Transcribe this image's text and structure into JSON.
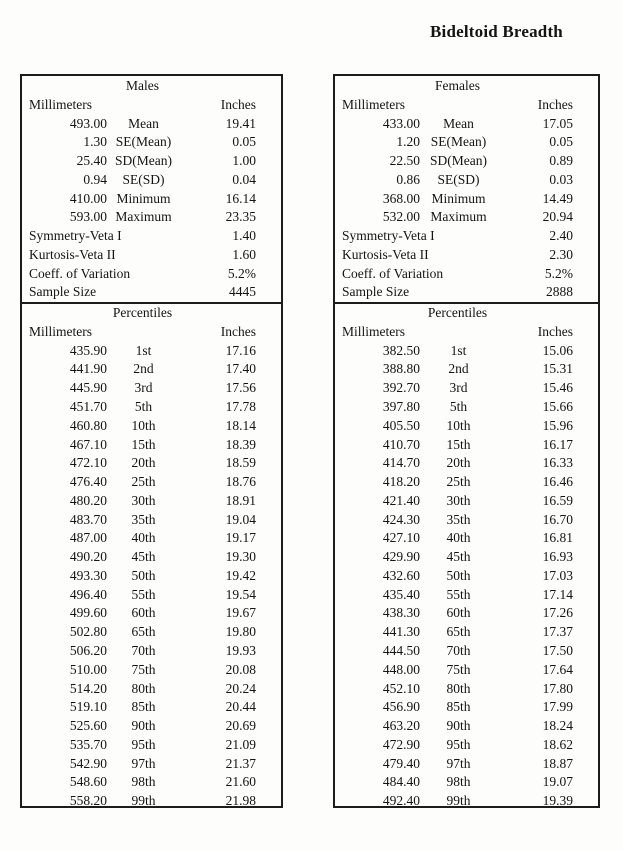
{
  "page_title": "Bideltoid Breadth",
  "tables": [
    {
      "group": "Males",
      "col_mm": "Millimeters",
      "col_in": "Inches",
      "percentiles_header": "Percentiles",
      "stats": [
        {
          "mm": "493.00",
          "label": "Mean",
          "in": "19.41"
        },
        {
          "mm": "1.30",
          "label": "SE(Mean)",
          "in": "0.05"
        },
        {
          "mm": "25.40",
          "label": "SD(Mean)",
          "in": "1.00"
        },
        {
          "mm": "0.94",
          "label": "SE(SD)",
          "in": "0.04"
        },
        {
          "mm": "410.00",
          "label": "Minimum",
          "in": "16.14"
        },
        {
          "mm": "593.00",
          "label": "Maximum",
          "in": "23.35"
        }
      ],
      "summary": [
        {
          "label": "Symmetry-Veta I",
          "value": "1.40"
        },
        {
          "label": "Kurtosis-Veta II",
          "value": "1.60"
        },
        {
          "label": "Coeff. of Variation",
          "value": "5.2%"
        },
        {
          "label": "Sample Size",
          "value": "4445"
        }
      ],
      "percentiles": [
        {
          "mm": "435.90",
          "label": "1st",
          "in": "17.16"
        },
        {
          "mm": "441.90",
          "label": "2nd",
          "in": "17.40"
        },
        {
          "mm": "445.90",
          "label": "3rd",
          "in": "17.56"
        },
        {
          "mm": "451.70",
          "label": "5th",
          "in": "17.78"
        },
        {
          "mm": "460.80",
          "label": "10th",
          "in": "18.14"
        },
        {
          "mm": "467.10",
          "label": "15th",
          "in": "18.39"
        },
        {
          "mm": "472.10",
          "label": "20th",
          "in": "18.59"
        },
        {
          "mm": "476.40",
          "label": "25th",
          "in": "18.76"
        },
        {
          "mm": "480.20",
          "label": "30th",
          "in": "18.91"
        },
        {
          "mm": "483.70",
          "label": "35th",
          "in": "19.04"
        },
        {
          "mm": "487.00",
          "label": "40th",
          "in": "19.17"
        },
        {
          "mm": "490.20",
          "label": "45th",
          "in": "19.30"
        },
        {
          "mm": "493.30",
          "label": "50th",
          "in": "19.42"
        },
        {
          "mm": "496.40",
          "label": "55th",
          "in": "19.54"
        },
        {
          "mm": "499.60",
          "label": "60th",
          "in": "19.67"
        },
        {
          "mm": "502.80",
          "label": "65th",
          "in": "19.80"
        },
        {
          "mm": "506.20",
          "label": "70th",
          "in": "19.93"
        },
        {
          "mm": "510.00",
          "label": "75th",
          "in": "20.08"
        },
        {
          "mm": "514.20",
          "label": "80th",
          "in": "20.24"
        },
        {
          "mm": "519.10",
          "label": "85th",
          "in": "20.44"
        },
        {
          "mm": "525.60",
          "label": "90th",
          "in": "20.69"
        },
        {
          "mm": "535.70",
          "label": "95th",
          "in": "21.09"
        },
        {
          "mm": "542.90",
          "label": "97th",
          "in": "21.37"
        },
        {
          "mm": "548.60",
          "label": "98th",
          "in": "21.60"
        },
        {
          "mm": "558.20",
          "label": "99th",
          "in": "21.98"
        }
      ]
    },
    {
      "group": "Females",
      "col_mm": "Millimeters",
      "col_in": "Inches",
      "percentiles_header": "Percentiles",
      "stats": [
        {
          "mm": "433.00",
          "label": "Mean",
          "in": "17.05"
        },
        {
          "mm": "1.20",
          "label": "SE(Mean)",
          "in": "0.05"
        },
        {
          "mm": "22.50",
          "label": "SD(Mean)",
          "in": "0.89"
        },
        {
          "mm": "0.86",
          "label": "SE(SD)",
          "in": "0.03"
        },
        {
          "mm": "368.00",
          "label": "Minimum",
          "in": "14.49"
        },
        {
          "mm": "532.00",
          "label": "Maximum",
          "in": "20.94"
        }
      ],
      "summary": [
        {
          "label": "Symmetry-Veta I",
          "value": "2.40"
        },
        {
          "label": "Kurtosis-Veta II",
          "value": "2.30"
        },
        {
          "label": "Coeff. of Variation",
          "value": "5.2%"
        },
        {
          "label": "Sample Size",
          "value": "2888"
        }
      ],
      "percentiles": [
        {
          "mm": "382.50",
          "label": "1st",
          "in": "15.06"
        },
        {
          "mm": "388.80",
          "label": "2nd",
          "in": "15.31"
        },
        {
          "mm": "392.70",
          "label": "3rd",
          "in": "15.46"
        },
        {
          "mm": "397.80",
          "label": "5th",
          "in": "15.66"
        },
        {
          "mm": "405.50",
          "label": "10th",
          "in": "15.96"
        },
        {
          "mm": "410.70",
          "label": "15th",
          "in": "16.17"
        },
        {
          "mm": "414.70",
          "label": "20th",
          "in": "16.33"
        },
        {
          "mm": "418.20",
          "label": "25th",
          "in": "16.46"
        },
        {
          "mm": "421.40",
          "label": "30th",
          "in": "16.59"
        },
        {
          "mm": "424.30",
          "label": "35th",
          "in": "16.70"
        },
        {
          "mm": "427.10",
          "label": "40th",
          "in": "16.81"
        },
        {
          "mm": "429.90",
          "label": "45th",
          "in": "16.93"
        },
        {
          "mm": "432.60",
          "label": "50th",
          "in": "17.03"
        },
        {
          "mm": "435.40",
          "label": "55th",
          "in": "17.14"
        },
        {
          "mm": "438.30",
          "label": "60th",
          "in": "17.26"
        },
        {
          "mm": "441.30",
          "label": "65th",
          "in": "17.37"
        },
        {
          "mm": "444.50",
          "label": "70th",
          "in": "17.50"
        },
        {
          "mm": "448.00",
          "label": "75th",
          "in": "17.64"
        },
        {
          "mm": "452.10",
          "label": "80th",
          "in": "17.80"
        },
        {
          "mm": "456.90",
          "label": "85th",
          "in": "17.99"
        },
        {
          "mm": "463.20",
          "label": "90th",
          "in": "18.24"
        },
        {
          "mm": "472.90",
          "label": "95th",
          "in": "18.62"
        },
        {
          "mm": "479.40",
          "label": "97th",
          "in": "18.87"
        },
        {
          "mm": "484.40",
          "label": "98th",
          "in": "19.07"
        },
        {
          "mm": "492.40",
          "label": "99th",
          "in": "19.39"
        }
      ]
    }
  ]
}
